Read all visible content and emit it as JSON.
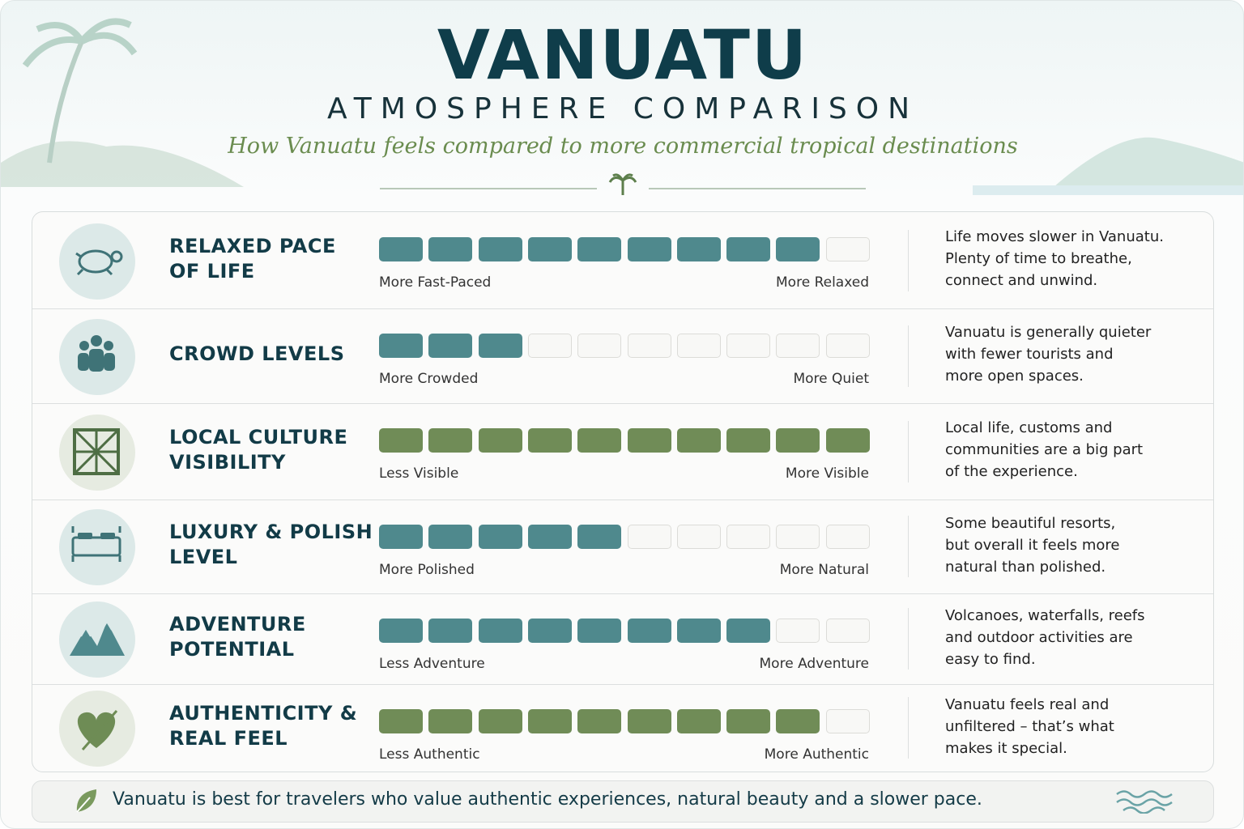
{
  "header": {
    "title": "VANUATU",
    "subtitle": "ATMOSPHERE COMPARISON",
    "tagline": "How Vanuatu feels compared to more commercial tropical destinations"
  },
  "rows": [
    {
      "title": [
        "RELAXED PACE",
        "OF LIFE"
      ],
      "score": 9,
      "max": 10,
      "color": "#4f898d",
      "low_label": "More Fast-Paced",
      "high_label": "More Relaxed",
      "description": [
        "Life moves slower in Vanuatu.",
        "Plenty of time to breathe,",
        "connect and unwind."
      ]
    },
    {
      "title": [
        "CROWD LEVELS"
      ],
      "score": 3,
      "max": 10,
      "color": "#4f898d",
      "low_label": "More Crowded",
      "high_label": "More Quiet",
      "description": [
        "Vanuatu is generally quieter",
        "with fewer tourists and",
        "more open spaces."
      ]
    },
    {
      "title": [
        "LOCAL CULTURE",
        "VISIBILITY"
      ],
      "score": 10,
      "max": 10,
      "color": "#708c57",
      "low_label": "Less Visible",
      "high_label": "More Visible",
      "description": [
        "Local life, customs and",
        "communities are a big part",
        "of the experience."
      ]
    },
    {
      "title": [
        "LUXURY & POLISH",
        "LEVEL"
      ],
      "score": 5,
      "max": 10,
      "color": "#4f898d",
      "low_label": "More Polished",
      "high_label": "More Natural",
      "description": [
        "Some beautiful resorts,",
        "but overall it feels more",
        "natural than polished."
      ]
    },
    {
      "title": [
        "ADVENTURE",
        "POTENTIAL"
      ],
      "score": 8,
      "max": 10,
      "color": "#4f898d",
      "low_label": "Less Adventure",
      "high_label": "More Adventure",
      "description": [
        "Volcanoes, waterfalls, reefs",
        "and outdoor activities are",
        "easy to find."
      ]
    },
    {
      "title": [
        "AUTHENTICITY &",
        "REAL FEEL"
      ],
      "score": 9,
      "max": 10,
      "color": "#708c57",
      "low_label": "Less Authentic",
      "high_label": "More Authentic",
      "description": [
        "Vanuatu feels real and",
        "unfiltered – that’s what",
        "makes it special."
      ]
    }
  ],
  "footer": {
    "text": "Vanuatu is best for travelers who value authentic experiences, natural beauty and a slower pace."
  }
}
